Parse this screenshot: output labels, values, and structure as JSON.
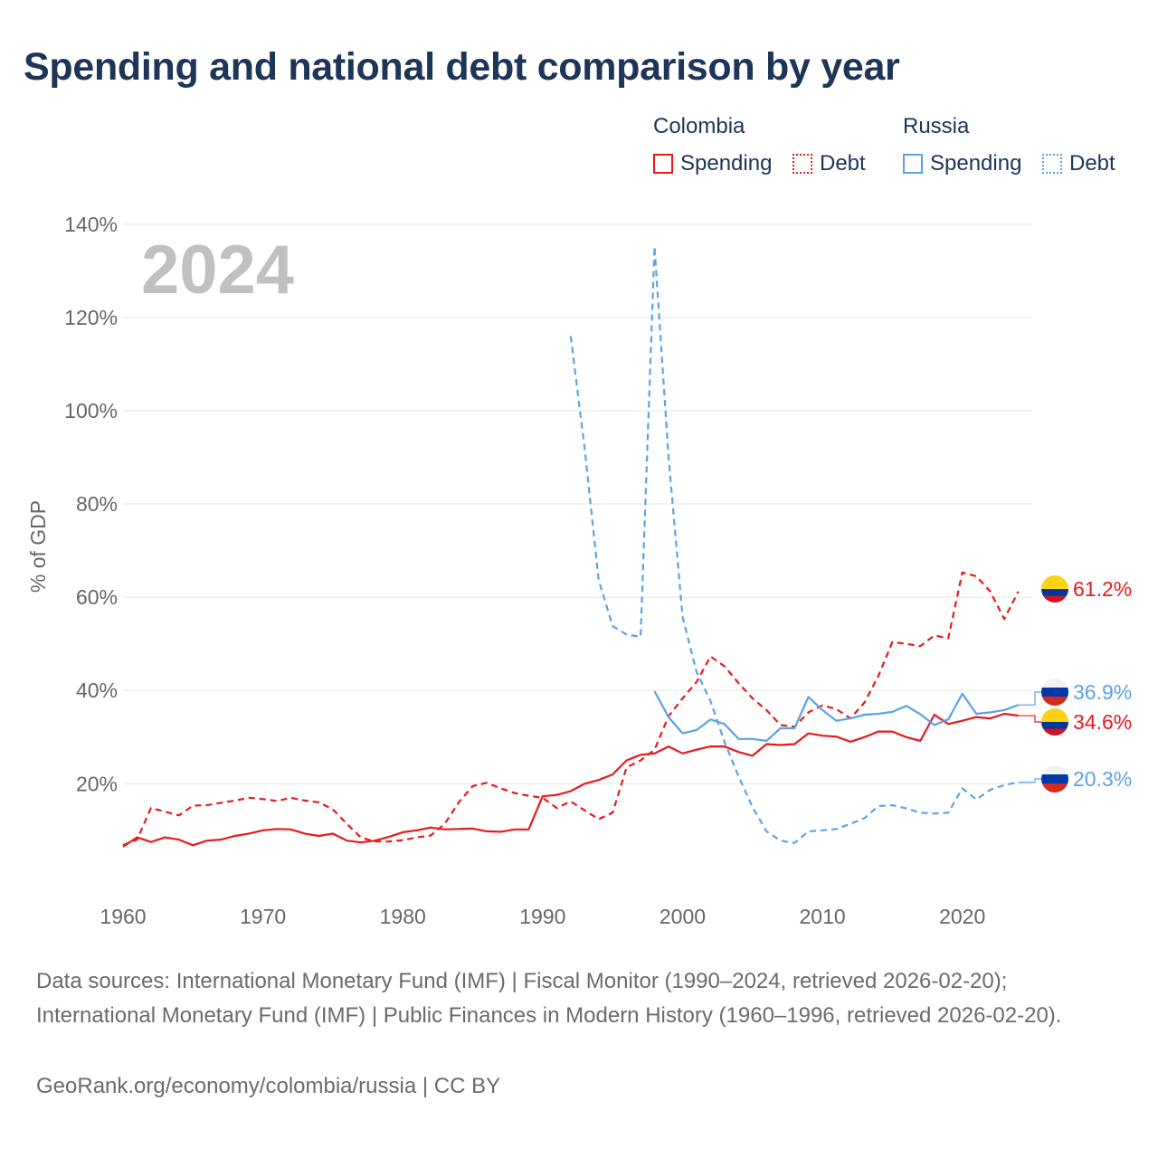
{
  "title": "Spending and national debt comparison by year",
  "legend": {
    "groups": [
      {
        "name": "Colombia",
        "items": [
          {
            "label": "Spending",
            "style": "solid"
          },
          {
            "label": "Debt",
            "style": "dotted"
          }
        ],
        "color": "#e8191c"
      },
      {
        "name": "Russia",
        "items": [
          {
            "label": "Spending",
            "style": "solid"
          },
          {
            "label": "Debt",
            "style": "dotted"
          }
        ],
        "color": "#5aa2e6"
      }
    ]
  },
  "colors": {
    "colombia": "#e8191c",
    "russia": "#5aa2e6",
    "grid": "#e6e6e6",
    "year_watermark": "#c0c0c0",
    "axis_text": "#666666"
  },
  "chart_data": {
    "type": "line",
    "title": "Spending and national debt comparison by year",
    "year_label": "2024",
    "ylabel": "% of GDP",
    "xlabel": "",
    "xlim": [
      1960,
      2025
    ],
    "ylim": [
      -4,
      145
    ],
    "x_ticks": [
      1960,
      1970,
      1980,
      1990,
      2000,
      2010,
      2020
    ],
    "y_ticks": [
      20,
      40,
      60,
      80,
      100,
      120,
      140
    ],
    "y_tick_labels": [
      "20%",
      "40%",
      "60%",
      "80%",
      "100%",
      "120%",
      "140%"
    ],
    "series": [
      {
        "name": "Colombia Spending",
        "country": "Colombia",
        "metric": "Spending",
        "color": "#e8191c",
        "dash": "solid",
        "x": [
          1960,
          1961,
          1962,
          1963,
          1964,
          1965,
          1966,
          1967,
          1968,
          1969,
          1970,
          1971,
          1972,
          1973,
          1974,
          1975,
          1976,
          1977,
          1978,
          1979,
          1980,
          1981,
          1982,
          1983,
          1984,
          1985,
          1986,
          1987,
          1988,
          1989,
          1990,
          1991,
          1992,
          1993,
          1994,
          1995,
          1996,
          1997,
          1998,
          1999,
          2000,
          2001,
          2002,
          2003,
          2004,
          2005,
          2006,
          2007,
          2008,
          2009,
          2010,
          2011,
          2012,
          2013,
          2014,
          2015,
          2016,
          2017,
          2018,
          2019,
          2020,
          2021,
          2022,
          2023,
          2024
        ],
        "y": [
          6.5,
          8.5,
          7.5,
          8.5,
          8.0,
          6.8,
          7.8,
          8.0,
          8.8,
          9.3,
          10.0,
          10.3,
          10.2,
          9.3,
          8.8,
          9.3,
          7.8,
          7.4,
          7.8,
          8.6,
          9.6,
          10.0,
          10.6,
          10.2,
          10.3,
          10.4,
          9.8,
          9.7,
          10.2,
          10.2,
          17.3,
          17.6,
          18.4,
          20.0,
          20.8,
          22.0,
          25.0,
          26.2,
          26.5,
          28.0,
          26.5,
          27.3,
          28.0,
          28.0,
          26.8,
          26.0,
          28.5,
          28.3,
          28.5,
          30.8,
          30.3,
          30.1,
          29.0,
          30.0,
          31.2,
          31.2,
          30.0,
          29.2,
          34.8,
          32.8,
          33.5,
          34.3,
          34.0,
          35.0,
          34.6
        ],
        "end_label": "34.6%"
      },
      {
        "name": "Colombia Debt",
        "country": "Colombia",
        "metric": "Debt",
        "color": "#e8191c",
        "dash": "dashed",
        "x": [
          1960,
          1961,
          1962,
          1963,
          1964,
          1965,
          1966,
          1967,
          1968,
          1969,
          1970,
          1971,
          1972,
          1973,
          1974,
          1975,
          1976,
          1977,
          1978,
          1979,
          1980,
          1981,
          1982,
          1983,
          1984,
          1985,
          1986,
          1987,
          1988,
          1989,
          1990,
          1991,
          1992,
          1993,
          1994,
          1995,
          1996,
          1997,
          1998,
          1999,
          2000,
          2001,
          2002,
          2003,
          2004,
          2005,
          2006,
          2007,
          2008,
          2009,
          2010,
          2011,
          2012,
          2013,
          2014,
          2015,
          2016,
          2017,
          2018,
          2019,
          2020,
          2021,
          2022,
          2023,
          2024
        ],
        "y": [
          6.8,
          8.0,
          14.8,
          14.0,
          13.2,
          15.3,
          15.4,
          15.9,
          16.4,
          17.0,
          16.7,
          16.3,
          17.0,
          16.4,
          16.0,
          14.5,
          11.4,
          8.5,
          7.6,
          7.6,
          7.9,
          8.5,
          8.9,
          11.4,
          16.0,
          19.5,
          20.2,
          19.0,
          18.0,
          17.4,
          17.0,
          14.8,
          16.2,
          14.3,
          12.4,
          13.8,
          23.5,
          25.0,
          27.3,
          34.5,
          38.3,
          41.8,
          47.3,
          45.2,
          41.6,
          38.3,
          35.8,
          32.6,
          32.2,
          35.3,
          36.8,
          36.0,
          34.0,
          37.4,
          43.1,
          50.4,
          50.0,
          49.5,
          51.8,
          51.2,
          65.3,
          64.5,
          61.2,
          55.3,
          61.2
        ],
        "end_label": "61.2%"
      },
      {
        "name": "Russia Spending",
        "country": "Russia",
        "metric": "Spending",
        "color": "#5aa2e6",
        "dash": "solid",
        "x": [
          1998,
          1999,
          2000,
          2001,
          2002,
          2003,
          2004,
          2005,
          2006,
          2007,
          2008,
          2009,
          2010,
          2011,
          2012,
          2013,
          2014,
          2015,
          2016,
          2017,
          2018,
          2019,
          2020,
          2021,
          2022,
          2023,
          2024
        ],
        "y": [
          39.8,
          34.3,
          30.8,
          31.5,
          33.8,
          32.8,
          29.6,
          29.6,
          29.2,
          31.9,
          31.9,
          38.6,
          35.8,
          33.5,
          34.0,
          34.8,
          35.0,
          35.4,
          36.7,
          34.9,
          32.6,
          33.8,
          39.3,
          35.0,
          35.3,
          35.8,
          36.9
        ],
        "end_label": "36.9%"
      },
      {
        "name": "Russia Debt",
        "country": "Russia",
        "metric": "Debt",
        "color": "#5aa2e6",
        "dash": "dashed",
        "x": [
          1992,
          1993,
          1994,
          1995,
          1996,
          1997,
          1998,
          1999,
          2000,
          2001,
          2002,
          2003,
          2004,
          2005,
          2006,
          2007,
          2008,
          2009,
          2010,
          2011,
          2012,
          2013,
          2014,
          2015,
          2016,
          2017,
          2018,
          2019,
          2020,
          2021,
          2022,
          2023,
          2024
        ],
        "y": [
          116.0,
          92.0,
          63.7,
          53.8,
          52.0,
          51.5,
          135.2,
          90.0,
          55.8,
          44.0,
          37.7,
          29.0,
          21.6,
          15.0,
          9.8,
          7.8,
          7.3,
          9.8,
          10.0,
          10.3,
          11.4,
          12.6,
          15.2,
          15.4,
          14.7,
          13.8,
          13.6,
          13.8,
          19.0,
          16.6,
          18.7,
          19.7,
          20.3
        ],
        "end_label": "20.3%"
      }
    ]
  },
  "footer": {
    "sources": "Data sources: International Monetary Fund (IMF) | Fiscal Monitor (1990–2024, retrieved 2026-02-20); International Monetary Fund (IMF) | Public Finances in Modern History (1960–1996, retrieved 2026-02-20).",
    "credit": "GeoRank.org/economy/colombia/russia | CC BY"
  }
}
